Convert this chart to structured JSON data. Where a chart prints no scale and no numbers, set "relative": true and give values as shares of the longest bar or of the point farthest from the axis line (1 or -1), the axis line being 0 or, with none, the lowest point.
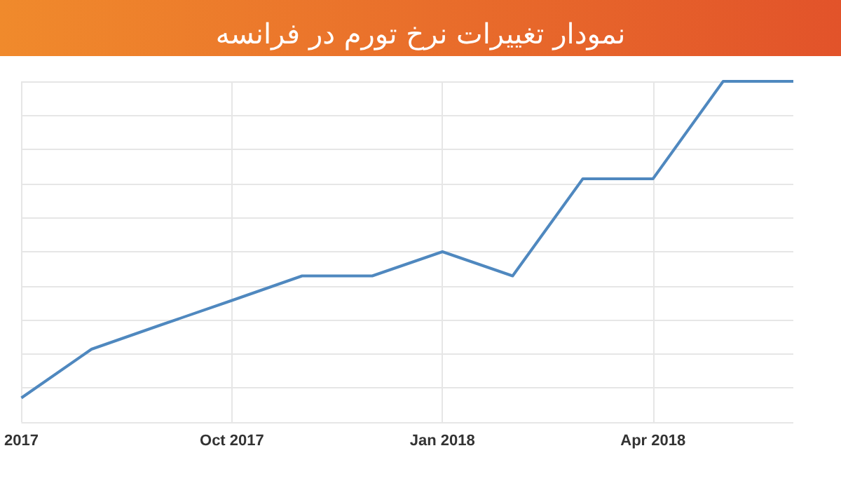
{
  "chart_data": {
    "type": "line",
    "title": "نمودار تغییرات نرخ تورم در فرانسه",
    "relative": true,
    "categories": [
      "2017",
      null,
      null,
      "Oct 2017",
      null,
      null,
      "Jan 2018",
      null,
      null,
      "Apr 2018",
      null,
      null
    ],
    "series": [
      {
        "color": "#4f88bf",
        "values": [
          0.071,
          0.214,
          0.286,
          0.357,
          0.429,
          0.429,
          0.5,
          0.429,
          0.714,
          0.714,
          1,
          1
        ]
      }
    ],
    "grid": true,
    "marker": "none",
    "line_style": "solid"
  }
}
